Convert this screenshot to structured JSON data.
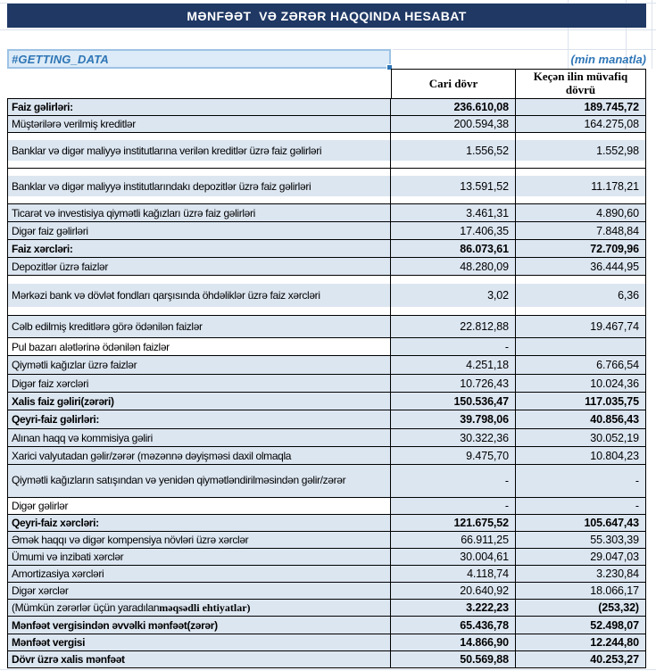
{
  "palette": {
    "title_bar_bg": "#1F3864",
    "row_fill": "#DCE6F1",
    "selection_fill": "#DCEBF7",
    "selection_border": "#9DC3E5",
    "accent_blue": "#2E75B6",
    "table_border": "#000000",
    "gridline": "#DBE2EC"
  },
  "title": "MƏNFƏƏT  VƏ ZƏRƏR HAQQINDA HESABAT",
  "status_cell": {
    "text": "#GETTING_DATA"
  },
  "unit_note": "(min manatla)",
  "table": {
    "columns": [
      "Cari dövr",
      "Keçən ilin müvafiq dövrü"
    ],
    "rows": [
      {
        "label": "Faiz gəlirləri:",
        "current": "236.610,08",
        "previous": "189.745,72",
        "bold": true,
        "height": 19
      },
      {
        "label": "Müştərilərə verilmiş kreditlər",
        "current": "200.594,38",
        "previous": "164.275,08",
        "height": 19
      },
      {
        "label": "Banklar və digər maliyyə institutlarına verilən kreditlər üzrə faiz gəlirləri",
        "current": "1.556,52",
        "previous": "1.552,98",
        "height": 40,
        "variant": "tall3"
      },
      {
        "label": "Banklar və digər maliyyə institutlarındakı depozitlər üzrə faiz gəlirləri",
        "current": "13.591,52",
        "previous": "11.178,21",
        "height": 40,
        "variant": "tall3"
      },
      {
        "label": "Ticarət və investisiya qiymətli kağızları üzrə faiz gəlirləri",
        "current": "3.461,31",
        "previous": "4.890,60",
        "height": 20
      },
      {
        "label": "Digər faiz gəlirləri",
        "current": "17.406,35",
        "previous": "7.848,84",
        "height": 20
      },
      {
        "label": "Faiz xərcləri:",
        "current": "86.073,61",
        "previous": "72.709,96",
        "bold": true,
        "height": 20
      },
      {
        "label": "Depozitlər üzrə faizlər",
        "current": "48.280,09",
        "previous": "36.444,95",
        "height": 20
      },
      {
        "label": "Mərkəzi bank və dövlət fondları qarşısında öhdəliklər üzrə faiz xərcləri",
        "current": "3,02",
        "previous": "6,36",
        "height": 45,
        "variant": "tall3"
      },
      {
        "label": "Cəlb edilmiş kreditlərə görə ödənilən faizlər",
        "current": "22.812,88",
        "previous": "19.467,74",
        "height": 25
      },
      {
        "label": "Pul bazarı alətlərinə ödənilən faizlər",
        "current": "-",
        "previous": "",
        "height": 20,
        "variant": "white-label"
      },
      {
        "label": "Qiymətli kağızlar üzrə faizlər",
        "current": "4.251,18",
        "previous": "6.766,54",
        "height": 21
      },
      {
        "label": "Digər faiz xərcləri",
        "current": "10.726,43",
        "previous": "10.024,36",
        "height": 20
      },
      {
        "label": "Xalis faiz gəliri(zərəri)",
        "current": "150.536,47",
        "previous": "117.035,75",
        "bold": true,
        "height": 20
      },
      {
        "label": "Qeyri-faiz gəlirləri:",
        "current": "39.798,06",
        "previous": "40.856,43",
        "bold": true,
        "height": 21
      },
      {
        "label": "Alınan haqq və kommisiya gəliri",
        "current": "30.322,36",
        "previous": "30.052,19",
        "height": 20
      },
      {
        "label": "Xarici valyutadan gəlir/zərər (məzənnə dəyişməsi daxil olmaqla",
        "current": "9.475,70",
        "previous": "10.804,23",
        "height": 20
      },
      {
        "label": "Qiymətli kağızların satışından və yenidən qiymətləndirilməsindən gəlir/zərər",
        "current": "-",
        "previous": "-",
        "height": 37,
        "variant": "wrap"
      },
      {
        "label": "Digər gəlirlər",
        "current": "-",
        "previous": "-",
        "height": 19,
        "variant": "white-label"
      },
      {
        "label": "Qeyri-faiz xərcləri:",
        "current": "121.675,52",
        "previous": "105.647,43",
        "bold": true,
        "height": 19
      },
      {
        "label": "Əmək haqqı və digər kompensiya növləri üzrə xərclər",
        "current": "66.911,25",
        "previous": "55.303,39",
        "height": 19
      },
      {
        "label": "Ümumi və inzibati xərclər",
        "current": "30.004,61",
        "previous": "29.047,03",
        "height": 19
      },
      {
        "label": "Amortizasiya xərcləri",
        "current": "4.118,74",
        "previous": "3.230,84",
        "height": 19
      },
      {
        "label": "Digər xərclər",
        "current": "20.640,92",
        "previous": "18.066,17",
        "height": 19
      },
      {
        "label": "(Mümkün zərərlər üçün yaradılan ",
        "label_serif": "məqsədli ehtiyatlar)",
        "current": "3.222,23",
        "previous": "(253,32)",
        "bold_values": true,
        "height": 19
      },
      {
        "label": "Mənfəət vergisindən əvvəlki mənfəət(zərər)",
        "current": "65.436,78",
        "previous": "52.498,07",
        "bold": true,
        "height": 20
      },
      {
        "label": "Mənfəət vergisi",
        "current": "14.866,90",
        "previous": "12.244,80",
        "bold": true,
        "height": 19
      },
      {
        "label": "Dövr üzrə xalis mənfəət",
        "current": "50.569,88",
        "previous": "40.253,27",
        "bold": true,
        "height": 19
      }
    ]
  }
}
